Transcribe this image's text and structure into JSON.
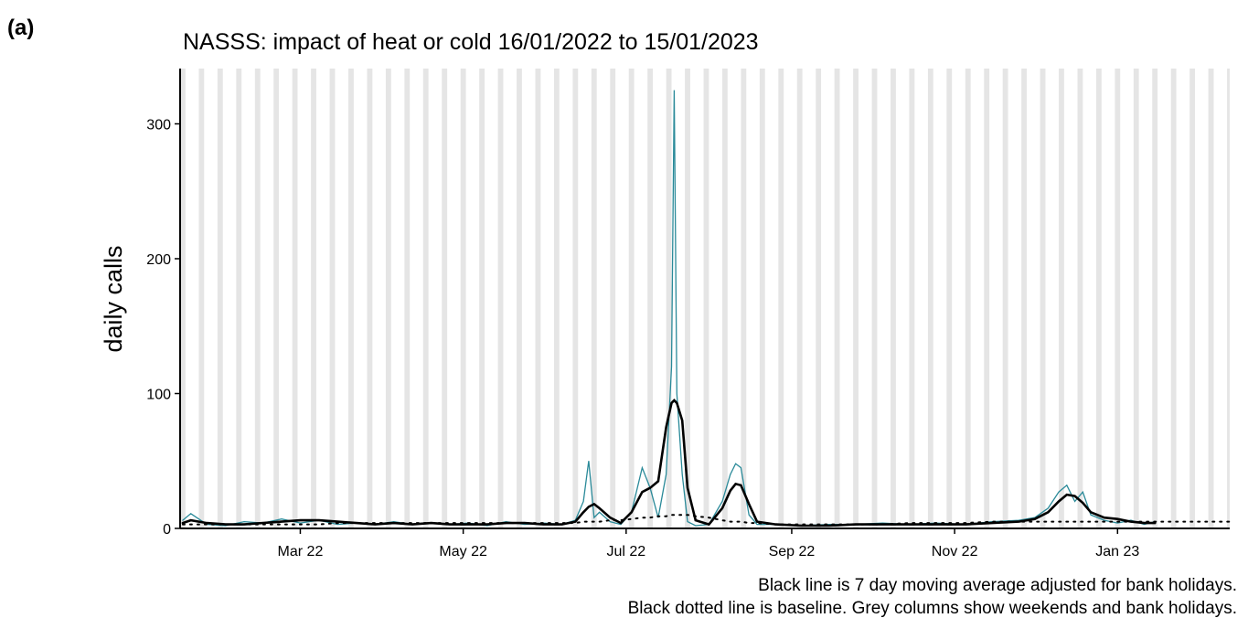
{
  "panel_label": "(a)",
  "chart_data": {
    "type": "line",
    "title": "NASSS: impact of heat or cold 16/01/2022 to 15/01/2023",
    "y_label": "daily calls",
    "notes": [
      "Black line is 7 day moving average adjusted for bank holidays.",
      "Black dotted line is baseline. Grey columns show weekends and bank holidays."
    ],
    "x": [
      "2022-01-16",
      "2022-01-19",
      "2022-01-25",
      "2022-02-01",
      "2022-02-08",
      "2022-02-15",
      "2022-02-22",
      "2022-03-01",
      "2022-03-08",
      "2022-03-15",
      "2022-03-22",
      "2022-03-29",
      "2022-04-05",
      "2022-04-12",
      "2022-04-19",
      "2022-04-26",
      "2022-05-03",
      "2022-05-10",
      "2022-05-17",
      "2022-05-24",
      "2022-05-31",
      "2022-06-07",
      "2022-06-12",
      "2022-06-15",
      "2022-06-17",
      "2022-06-19",
      "2022-06-21",
      "2022-06-25",
      "2022-06-29",
      "2022-07-03",
      "2022-07-07",
      "2022-07-10",
      "2022-07-13",
      "2022-07-16",
      "2022-07-18",
      "2022-07-19",
      "2022-07-20",
      "2022-07-22",
      "2022-07-24",
      "2022-07-27",
      "2022-08-01",
      "2022-08-06",
      "2022-08-09",
      "2022-08-11",
      "2022-08-13",
      "2022-08-16",
      "2022-08-19",
      "2022-08-26",
      "2022-09-05",
      "2022-09-15",
      "2022-09-25",
      "2022-10-05",
      "2022-10-15",
      "2022-10-25",
      "2022-11-05",
      "2022-11-15",
      "2022-11-25",
      "2022-12-01",
      "2022-12-06",
      "2022-12-10",
      "2022-12-13",
      "2022-12-16",
      "2022-12-19",
      "2022-12-22",
      "2022-12-27",
      "2023-01-01",
      "2023-01-06",
      "2023-01-11",
      "2023-01-15",
      "2023-02-12"
    ],
    "series": [
      {
        "name": "daily calls",
        "color": "#2a8a99",
        "width": 1.3,
        "dash": "none",
        "values": [
          6,
          11,
          3,
          2,
          5,
          4,
          7,
          4,
          6,
          3,
          4,
          3,
          5,
          3,
          4,
          3,
          4,
          2,
          5,
          3,
          4,
          3,
          6,
          20,
          50,
          8,
          12,
          5,
          3,
          12,
          45,
          30,
          8,
          40,
          120,
          325,
          100,
          40,
          5,
          2,
          3,
          20,
          40,
          48,
          45,
          10,
          3,
          3,
          2,
          3,
          3,
          4,
          3,
          4,
          3,
          5,
          6,
          8,
          15,
          27,
          32,
          20,
          27,
          10,
          6,
          4,
          6,
          3,
          5,
          null
        ]
      },
      {
        "name": "7 day moving average",
        "color": "#000000",
        "width": 2.6,
        "dash": "none",
        "values": [
          4,
          6,
          4,
          3,
          3,
          4,
          5,
          6,
          6,
          5,
          4,
          3,
          4,
          3,
          4,
          3,
          3,
          3,
          4,
          4,
          3,
          3,
          5,
          12,
          16,
          18,
          15,
          8,
          4,
          12,
          27,
          30,
          35,
          75,
          93,
          95,
          93,
          80,
          30,
          6,
          3,
          15,
          28,
          33,
          32,
          18,
          5,
          3,
          2,
          2,
          3,
          3,
          3,
          3,
          3,
          4,
          5,
          7,
          12,
          20,
          25,
          24,
          19,
          12,
          8,
          7,
          5,
          4,
          4,
          null
        ]
      },
      {
        "name": "baseline",
        "color": "#000000",
        "width": 2,
        "dash": "2 6",
        "values": [
          3,
          3,
          3,
          3,
          3,
          3,
          3,
          3,
          3,
          4,
          4,
          4,
          4,
          4,
          4,
          4,
          4,
          4,
          4,
          4,
          4,
          4,
          4,
          5,
          5,
          5,
          5,
          6,
          6,
          7,
          8,
          8,
          9,
          9,
          10,
          10,
          10,
          10,
          10,
          9,
          8,
          6,
          5,
          5,
          5,
          4,
          4,
          3,
          3,
          3,
          3,
          3,
          4,
          4,
          4,
          5,
          5,
          5,
          5,
          5,
          5,
          5,
          5,
          5,
          5,
          5,
          5,
          5,
          5,
          5
        ]
      }
    ],
    "xlim": [
      "2022-01-15",
      "2023-02-12"
    ],
    "xticks": [
      {
        "value": "2022-03-01",
        "label": "Mar 22"
      },
      {
        "value": "2022-05-01",
        "label": "May 22"
      },
      {
        "value": "2022-07-01",
        "label": "Jul 22"
      },
      {
        "value": "2022-09-01",
        "label": "Sep 22"
      },
      {
        "value": "2022-11-01",
        "label": "Nov 22"
      },
      {
        "value": "2023-01-01",
        "label": "Jan 23"
      }
    ],
    "ylim": [
      0,
      341
    ],
    "yticks": [
      0,
      100,
      200,
      300
    ],
    "weekend_color": "#e5e5e5"
  }
}
